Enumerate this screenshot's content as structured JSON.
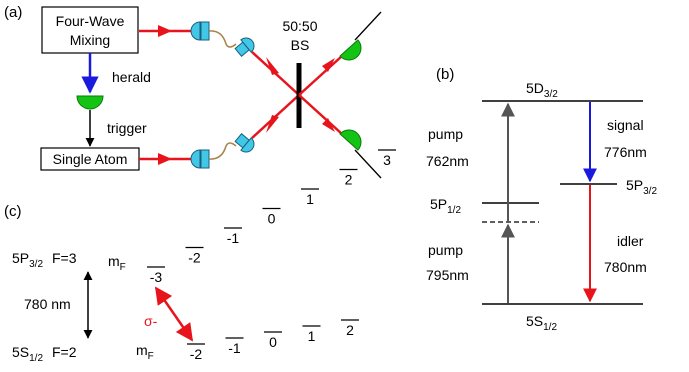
{
  "panel_labels": {
    "a": "(a)",
    "b": "(b)",
    "c": "(c)"
  },
  "panel_a": {
    "fwm_line1": "Four-Wave",
    "fwm_line2": "Mixing",
    "herald": "herald",
    "trigger": "trigger",
    "single_atom": "Single Atom",
    "bs_line1": "50:50",
    "bs_line2": "BS"
  },
  "panel_b": {
    "level_5d": {
      "base": "5D",
      "sub": "3/2"
    },
    "level_5p32": {
      "base": "5P",
      "sub": "3/2"
    },
    "level_5p12": {
      "base": "5P",
      "sub": "1/2"
    },
    "level_5s": {
      "base": "5S",
      "sub": "1/2"
    },
    "pump_upper": "pump",
    "pump_upper_wl": "762nm",
    "pump_lower": "pump",
    "pump_lower_wl": "795nm",
    "signal": "signal",
    "signal_wl": "776nm",
    "idler": "idler",
    "idler_wl": "780nm"
  },
  "panel_c": {
    "upper_level": {
      "base": "5P",
      "sub": "3/2",
      "f": "F=3"
    },
    "lower_level": {
      "base": "5S",
      "sub": "1/2",
      "f": "F=2"
    },
    "transition": "780 nm",
    "sigma": "σ-",
    "mf_label": {
      "base": "m",
      "sub": "F"
    },
    "upper_mf": [
      "-3",
      "-2",
      "-1",
      "0",
      "1",
      "2",
      "3"
    ],
    "lower_mf": [
      "-2",
      "-1",
      "0",
      "1",
      "2"
    ]
  },
  "colors": {
    "red": "#e8141c",
    "blue": "#1a1adf",
    "green": "#14c414",
    "cyan": "#42c8e6",
    "gray": "#555555",
    "fiber": "#a8824a"
  }
}
